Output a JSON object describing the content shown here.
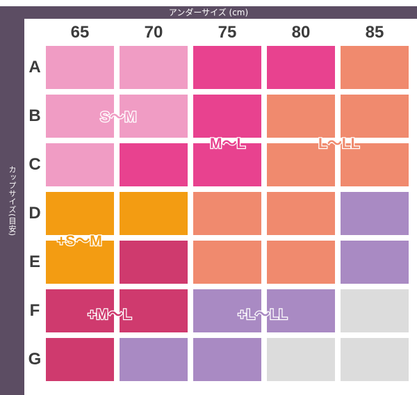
{
  "header": {
    "under_size_label": "アンダーサイズ (cm)",
    "cup_size_label": "カップサイズ(目安)"
  },
  "columns": [
    "65",
    "70",
    "75",
    "80",
    "85"
  ],
  "rows": [
    "A",
    "B",
    "C",
    "D",
    "E",
    "F",
    "G"
  ],
  "colors": {
    "light_pink": "#f09cc4",
    "magenta": "#e8428f",
    "salmon": "#f08a6e",
    "orange": "#f39c12",
    "crimson": "#cf3a6e",
    "lavender": "#a98ac3",
    "gray": "#dcdcdc",
    "frame": "#5c4d63",
    "label_text": "#3c3c3c"
  },
  "grid": [
    [
      "light_pink",
      "light_pink",
      "magenta",
      "magenta",
      "salmon"
    ],
    [
      "light_pink",
      "light_pink",
      "magenta",
      "salmon",
      "salmon"
    ],
    [
      "light_pink",
      "magenta",
      "magenta",
      "salmon",
      "salmon"
    ],
    [
      "orange",
      "orange",
      "salmon",
      "salmon",
      "lavender"
    ],
    [
      "orange",
      "crimson",
      "salmon",
      "salmon",
      "lavender"
    ],
    [
      "crimson",
      "crimson",
      "lavender",
      "lavender",
      "gray"
    ],
    [
      "crimson",
      "lavender",
      "lavender",
      "gray",
      "gray"
    ]
  ],
  "size_labels": [
    {
      "text": "S〜M",
      "color": "light_pink"
    },
    {
      "text": "M〜L",
      "color": "magenta"
    },
    {
      "text": "L〜LL",
      "color": "salmon"
    },
    {
      "text": "+S〜M",
      "color": "orange"
    },
    {
      "text": "+M〜L",
      "color": "crimson"
    },
    {
      "text": "+L〜LL",
      "color": "lavender"
    }
  ]
}
